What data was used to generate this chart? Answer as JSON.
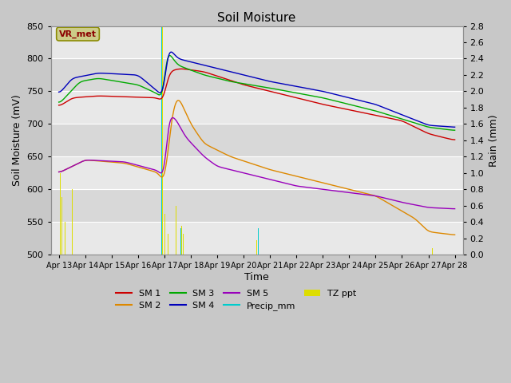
{
  "title": "Soil Moisture",
  "xlabel": "Time",
  "ylabel_left": "Soil Moisture (mV)",
  "ylabel_right": "Rain (mm)",
  "ylim_left": [
    500,
    850
  ],
  "ylim_right": [
    0.0,
    2.8
  ],
  "yticks_left": [
    500,
    550,
    600,
    650,
    700,
    750,
    800,
    850
  ],
  "yticks_right": [
    0.0,
    0.2,
    0.4,
    0.6,
    0.8,
    1.0,
    1.2,
    1.4,
    1.6,
    1.8,
    2.0,
    2.2,
    2.4,
    2.6,
    2.8
  ],
  "x_labels": [
    "Apr 13",
    "Apr 14",
    "Apr 15",
    "Apr 16",
    "Apr 17",
    "Apr 18",
    "Apr 19",
    "Apr 20",
    "Apr 21",
    "Apr 22",
    "Apr 23",
    "Apr 24",
    "Apr 25",
    "Apr 26",
    "Apr 27",
    "Apr 28"
  ],
  "annotation_text": "VR_met",
  "annotation_color": "#8B0000",
  "annotation_bg": "#cccc88",
  "annotation_edge": "#8B8B00",
  "background_color": "#c8c8c8",
  "plot_bg_light": "#e8e8e8",
  "plot_bg_dark": "#d8d8d8",
  "grid_color": "#ffffff",
  "sm1_color": "#cc0000",
  "sm2_color": "#dd8800",
  "sm3_color": "#00aa00",
  "sm4_color": "#0000bb",
  "sm5_color": "#9900bb",
  "precip_color": "#00cccc",
  "tz_color": "#dddd00",
  "n_days": 15
}
